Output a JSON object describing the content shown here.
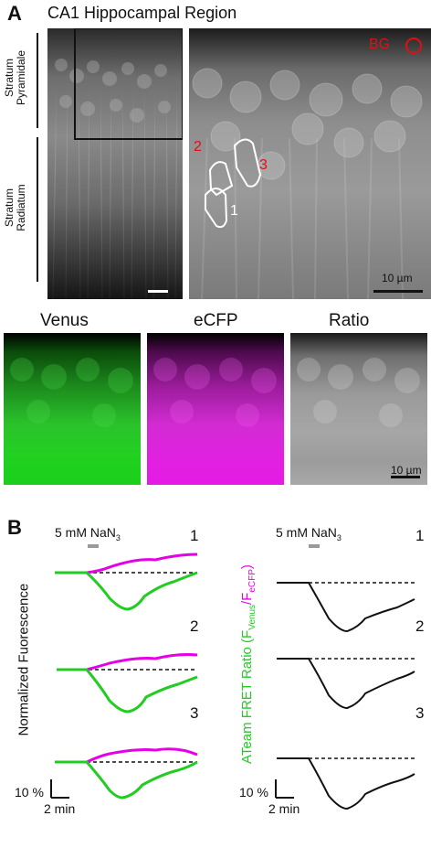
{
  "panel_a": {
    "letter": "A",
    "title": "CA1 Hippocampal Region",
    "layers": {
      "pyramidale_line1": "Stratum",
      "pyramidale_line2": "Pyramidale",
      "radiatum_line1": "Stratum",
      "radiatum_line2": "Radiatum"
    },
    "zoom": {
      "bg_label": "BG",
      "rois": [
        "1",
        "2",
        "3"
      ],
      "scale_bar": "10 µm"
    },
    "channels": {
      "venus": "Venus",
      "ecfp": "eCFP",
      "ratio": "Ratio",
      "scale_bar": "10 µm"
    },
    "colors": {
      "venus": "#22cc22",
      "ecfp": "#e600e6",
      "roi": "#ffffff",
      "bg": "#e01010"
    }
  },
  "panel_b": {
    "letter": "B",
    "stim": "5 mM NaN",
    "stim_sub": "3",
    "left_ylabel": "Normalized Fuorescence",
    "right_ylabel_main": "ATeam  FRET Ratio (F",
    "right_ylabel_sub1": "Venus",
    "right_ylabel_mid": "/F",
    "right_ylabel_sub2": "eCFP",
    "right_ylabel_end": ")",
    "traces": [
      "1",
      "2",
      "3"
    ],
    "scale_y": "10 %",
    "scale_x": "2 min",
    "colors": {
      "venus": "#22cc22",
      "ecfp": "#e600e6",
      "ratio": "#000000",
      "stim": "#999999"
    }
  }
}
